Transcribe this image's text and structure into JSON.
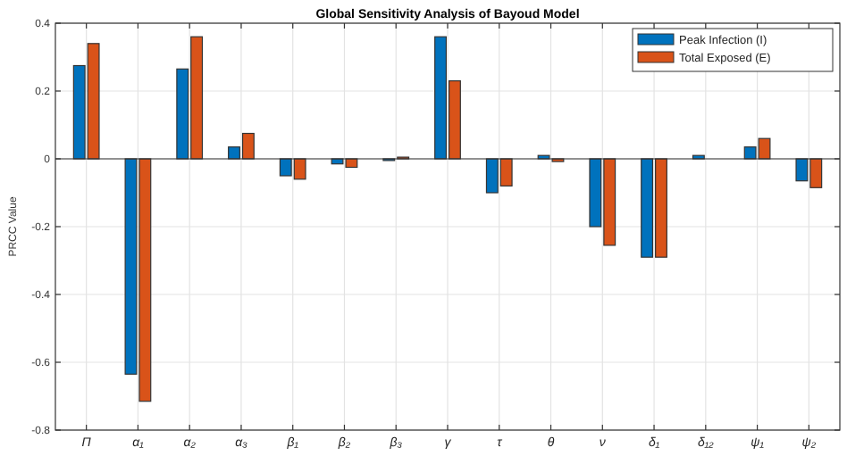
{
  "chart_data": {
    "type": "bar",
    "title": "Global Sensitivity Analysis of Bayoud Model",
    "ylabel": "PRCC Value",
    "categories": [
      "Π",
      "α₁",
      "α₂",
      "α₃",
      "β₁",
      "β₂",
      "β₃",
      "γ",
      "τ",
      "θ",
      "ν",
      "δ₁",
      "δ₁₂",
      "ψ₁",
      "ψ₂"
    ],
    "series": [
      {
        "name": "Peak Infection (I)",
        "color": "#0072bd",
        "values": [
          0.275,
          -0.635,
          0.265,
          0.035,
          -0.05,
          -0.015,
          -0.005,
          0.36,
          -0.1,
          0.01,
          -0.2,
          -0.29,
          0.01,
          0.035,
          -0.065
        ]
      },
      {
        "name": "Total Exposed (E)",
        "color": "#d95319",
        "values": [
          0.34,
          -0.715,
          0.36,
          0.075,
          -0.06,
          -0.025,
          0.005,
          0.23,
          -0.08,
          -0.008,
          -0.255,
          -0.29,
          0,
          0.06,
          -0.085
        ]
      }
    ],
    "ylim": [
      -0.8,
      0.4
    ],
    "yticks": [
      -0.8,
      -0.6,
      -0.4,
      -0.2,
      0,
      0.2,
      0.4
    ],
    "grid": true,
    "legend": "top right"
  }
}
